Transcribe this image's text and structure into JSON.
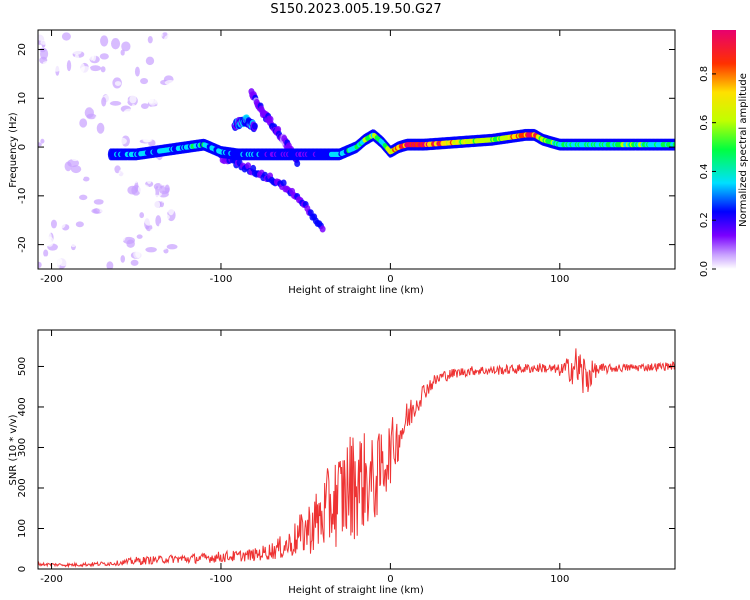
{
  "title": "S150.2023.005.19.50.G27",
  "chart_data": [
    {
      "type": "heatmap",
      "xlabel": "Height of straight line (km)",
      "ylabel": "Frequency (Hz)",
      "xlim": [
        -208,
        168
      ],
      "ylim": [
        -25,
        24
      ],
      "xticks": [
        -200,
        -100,
        0,
        100
      ],
      "yticks": [
        -20,
        -10,
        0,
        10,
        20
      ],
      "colorbar": {
        "label": "Normalized spectral amplitude",
        "range": [
          0,
          0.98
        ],
        "ticks": [
          "0.0",
          "0.2",
          "0.4",
          "0.6",
          "0.8"
        ],
        "tick_values": [
          0.0,
          0.2,
          0.4,
          0.6,
          0.8
        ],
        "colors": [
          "#ffffff",
          "#c8a0ff",
          "#7a00ff",
          "#0000ff",
          "#00e0ff",
          "#00ff40",
          "#c0ff00",
          "#ffe000",
          "#ff3000",
          "#e8006e"
        ]
      },
      "ridge": {
        "x": [
          -165,
          -150,
          -130,
          -110,
          -100,
          -90,
          -80,
          -70,
          -60,
          -50,
          -40,
          -30,
          -20,
          -15,
          -10,
          -5,
          0,
          5,
          10,
          20,
          40,
          60,
          80,
          85,
          90,
          100,
          120,
          140,
          168
        ],
        "y": [
          -1.5,
          -1.5,
          -0.5,
          0.5,
          -1,
          -1.5,
          -1.5,
          -1.5,
          -1.5,
          -1.5,
          -1.5,
          -1.5,
          0,
          1.5,
          2.5,
          1,
          -1,
          0,
          0.5,
          0.5,
          1,
          1.5,
          2.5,
          2.5,
          1.5,
          0.5,
          0.5,
          0.5,
          0.5
        ],
        "amplitude": [
          0.35,
          0.4,
          0.4,
          0.45,
          0.4,
          0.35,
          0.35,
          0.3,
          0.3,
          0.3,
          0.35,
          0.4,
          0.5,
          0.55,
          0.6,
          0.5,
          0.7,
          0.85,
          0.95,
          0.95,
          0.7,
          0.6,
          0.85,
          0.9,
          0.6,
          0.5,
          0.5,
          0.55,
          0.5
        ]
      },
      "branches": [
        {
          "x": [
            -82,
            -75,
            -68,
            -60,
            -55
          ],
          "y": [
            11,
            7,
            4,
            0,
            -3
          ],
          "amplitude": 0.25
        },
        {
          "x": [
            -100,
            -90,
            -80,
            -70,
            -60,
            -50,
            -40
          ],
          "y": [
            -2,
            -3.5,
            -5,
            -6.5,
            -8.5,
            -12,
            -17
          ],
          "amplitude": 0.3
        },
        {
          "x": [
            -92,
            -85,
            -80
          ],
          "y": [
            4.5,
            5.5,
            4
          ],
          "amplitude": 0.35
        }
      ]
    },
    {
      "type": "line",
      "xlabel": "Height of straight line (km)",
      "ylabel": "SNR (10 * v/v)",
      "xlim": [
        -208,
        168
      ],
      "ylim": [
        0,
        590
      ],
      "xticks": [
        -200,
        -100,
        0,
        100
      ],
      "yticks": [
        0,
        100,
        200,
        300,
        400,
        500
      ],
      "color": "#ee3333",
      "x": [
        -208,
        -190,
        -175,
        -160,
        -150,
        -140,
        -130,
        -120,
        -110,
        -100,
        -90,
        -80,
        -70,
        -60,
        -50,
        -40,
        -35,
        -30,
        -25,
        -20,
        -15,
        -10,
        -5,
        0,
        5,
        10,
        15,
        20,
        25,
        30,
        40,
        50,
        60,
        70,
        80,
        90,
        100,
        105,
        110,
        115,
        120,
        130,
        140,
        150,
        160,
        168
      ],
      "y": [
        12,
        10,
        12,
        15,
        20,
        22,
        25,
        25,
        27,
        30,
        32,
        35,
        45,
        60,
        95,
        130,
        160,
        175,
        200,
        215,
        220,
        210,
        250,
        290,
        330,
        370,
        410,
        440,
        460,
        475,
        485,
        490,
        490,
        492,
        495,
        497,
        490,
        495,
        500,
        470,
        490,
        495,
        497,
        498,
        500,
        502
      ],
      "noise_amplitude": [
        4,
        4,
        5,
        6,
        10,
        10,
        10,
        12,
        12,
        14,
        14,
        16,
        22,
        35,
        60,
        90,
        110,
        120,
        135,
        140,
        120,
        110,
        95,
        80,
        60,
        45,
        35,
        22,
        18,
        15,
        12,
        12,
        12,
        12,
        12,
        12,
        15,
        30,
        55,
        65,
        20,
        10,
        10,
        10,
        10,
        10
      ]
    }
  ]
}
